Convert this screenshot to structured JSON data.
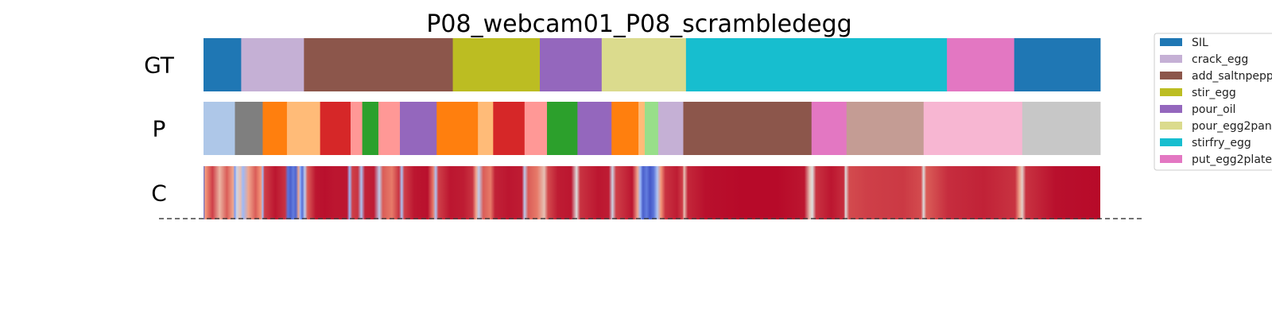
{
  "chart_data": {
    "type": "segmentation-timeline",
    "title": "P08_webcam01_P08_scrambledegg",
    "x_range": [
      0,
      1
    ],
    "legend": {
      "placement": "top-right",
      "entries": [
        {
          "label": "SIL",
          "color": "#1f77b4"
        },
        {
          "label": "crack_egg",
          "color": "#c5b0d5"
        },
        {
          "label": "add_saltnpepper",
          "color": "#8c564b"
        },
        {
          "label": "stir_egg",
          "color": "#bcbd22"
        },
        {
          "label": "pour_oil",
          "color": "#9467bd"
        },
        {
          "label": "pour_egg2pan",
          "color": "#dbdb8d"
        },
        {
          "label": "stirfry_egg",
          "color": "#17becf"
        },
        {
          "label": "put_egg2plate",
          "color": "#e377c2"
        }
      ]
    },
    "rows": [
      {
        "label": "GT",
        "kind": "segments",
        "segments": [
          {
            "start": 0.0,
            "end": 0.042,
            "color": "#1f77b4"
          },
          {
            "start": 0.042,
            "end": 0.112,
            "color": "#c5b0d5"
          },
          {
            "start": 0.112,
            "end": 0.278,
            "color": "#8c564b"
          },
          {
            "start": 0.278,
            "end": 0.375,
            "color": "#bcbd22"
          },
          {
            "start": 0.375,
            "end": 0.444,
            "color": "#9467bd"
          },
          {
            "start": 0.444,
            "end": 0.538,
            "color": "#dbdb8d"
          },
          {
            "start": 0.538,
            "end": 0.829,
            "color": "#17becf"
          },
          {
            "start": 0.829,
            "end": 0.904,
            "color": "#e377c2"
          },
          {
            "start": 0.904,
            "end": 1.0,
            "color": "#1f77b4"
          }
        ]
      },
      {
        "label": "P",
        "kind": "segments",
        "segments": [
          {
            "start": 0.0,
            "end": 0.035,
            "color": "#aec7e8"
          },
          {
            "start": 0.035,
            "end": 0.066,
            "color": "#7f7f7f"
          },
          {
            "start": 0.066,
            "end": 0.093,
            "color": "#ff7f0e"
          },
          {
            "start": 0.093,
            "end": 0.13,
            "color": "#ffbb78"
          },
          {
            "start": 0.13,
            "end": 0.164,
            "color": "#d62728"
          },
          {
            "start": 0.164,
            "end": 0.177,
            "color": "#ff9896"
          },
          {
            "start": 0.177,
            "end": 0.195,
            "color": "#2ca02c"
          },
          {
            "start": 0.195,
            "end": 0.219,
            "color": "#ff9896"
          },
          {
            "start": 0.219,
            "end": 0.26,
            "color": "#9467bd"
          },
          {
            "start": 0.26,
            "end": 0.306,
            "color": "#ff7f0e"
          },
          {
            "start": 0.306,
            "end": 0.323,
            "color": "#ffbb78"
          },
          {
            "start": 0.323,
            "end": 0.358,
            "color": "#d62728"
          },
          {
            "start": 0.358,
            "end": 0.383,
            "color": "#ff9896"
          },
          {
            "start": 0.383,
            "end": 0.417,
            "color": "#2ca02c"
          },
          {
            "start": 0.417,
            "end": 0.455,
            "color": "#9467bd"
          },
          {
            "start": 0.455,
            "end": 0.485,
            "color": "#ff7f0e"
          },
          {
            "start": 0.485,
            "end": 0.492,
            "color": "#ffbb78"
          },
          {
            "start": 0.492,
            "end": 0.507,
            "color": "#98df8a"
          },
          {
            "start": 0.507,
            "end": 0.535,
            "color": "#c5b0d5"
          },
          {
            "start": 0.535,
            "end": 0.678,
            "color": "#8c564b"
          },
          {
            "start": 0.678,
            "end": 0.717,
            "color": "#e377c2"
          },
          {
            "start": 0.717,
            "end": 0.803,
            "color": "#c49c94"
          },
          {
            "start": 0.803,
            "end": 0.913,
            "color": "#f7b6d2"
          },
          {
            "start": 0.913,
            "end": 1.0,
            "color": "#c7c7c7"
          }
        ]
      },
      {
        "label": "C",
        "kind": "confidence",
        "colormap": "coolwarm",
        "points": [
          [
            0.0,
            0.1
          ],
          [
            0.002,
            0.75
          ],
          [
            0.01,
            0.9
          ],
          [
            0.018,
            0.65
          ],
          [
            0.026,
            0.85
          ],
          [
            0.033,
            0.7
          ],
          [
            0.035,
            0.2
          ],
          [
            0.037,
            0.45
          ],
          [
            0.041,
            0.6
          ],
          [
            0.044,
            0.3
          ],
          [
            0.05,
            0.7
          ],
          [
            0.058,
            0.85
          ],
          [
            0.064,
            0.75
          ],
          [
            0.066,
            0.3
          ],
          [
            0.068,
            0.9
          ],
          [
            0.08,
            0.97
          ],
          [
            0.091,
            0.92
          ],
          [
            0.094,
            0.1
          ],
          [
            0.097,
            0.05
          ],
          [
            0.1,
            0.12
          ],
          [
            0.103,
            0.06
          ],
          [
            0.106,
            0.7
          ],
          [
            0.108,
            0.25
          ],
          [
            0.11,
            0.08
          ],
          [
            0.113,
            0.4
          ],
          [
            0.116,
            0.85
          ],
          [
            0.125,
            0.97
          ],
          [
            0.135,
            0.98
          ],
          [
            0.146,
            0.97
          ],
          [
            0.16,
            0.97
          ],
          [
            0.163,
            0.3
          ],
          [
            0.166,
            0.9
          ],
          [
            0.172,
            0.92
          ],
          [
            0.176,
            0.35
          ],
          [
            0.18,
            0.95
          ],
          [
            0.19,
            0.96
          ],
          [
            0.196,
            0.4
          ],
          [
            0.2,
            0.85
          ],
          [
            0.21,
            0.8
          ],
          [
            0.218,
            0.92
          ],
          [
            0.221,
            0.35
          ],
          [
            0.224,
            0.9
          ],
          [
            0.235,
            0.97
          ],
          [
            0.25,
            0.98
          ],
          [
            0.256,
            0.8
          ],
          [
            0.259,
            0.35
          ],
          [
            0.262,
            0.9
          ],
          [
            0.275,
            0.97
          ],
          [
            0.29,
            0.96
          ],
          [
            0.3,
            0.92
          ],
          [
            0.304,
            0.7
          ],
          [
            0.307,
            0.4
          ],
          [
            0.312,
            0.85
          ],
          [
            0.32,
            0.8
          ],
          [
            0.325,
            0.95
          ],
          [
            0.34,
            0.97
          ],
          [
            0.355,
            0.96
          ],
          [
            0.358,
            0.4
          ],
          [
            0.362,
            0.85
          ],
          [
            0.372,
            0.8
          ],
          [
            0.38,
            0.6
          ],
          [
            0.384,
            0.88
          ],
          [
            0.395,
            0.96
          ],
          [
            0.41,
            0.97
          ],
          [
            0.416,
            0.5
          ],
          [
            0.42,
            0.92
          ],
          [
            0.44,
            0.97
          ],
          [
            0.452,
            0.96
          ],
          [
            0.456,
            0.45
          ],
          [
            0.46,
            0.9
          ],
          [
            0.478,
            0.97
          ],
          [
            0.484,
            0.7
          ],
          [
            0.487,
            0.3
          ],
          [
            0.49,
            0.05
          ],
          [
            0.494,
            0.12
          ],
          [
            0.498,
            0.03
          ],
          [
            0.502,
            0.1
          ],
          [
            0.506,
            0.35
          ],
          [
            0.51,
            0.75
          ],
          [
            0.515,
            0.92
          ],
          [
            0.528,
            0.96
          ],
          [
            0.534,
            0.9
          ],
          [
            0.536,
            0.6
          ],
          [
            0.54,
            0.94
          ],
          [
            0.56,
            0.98
          ],
          [
            0.6,
            0.99
          ],
          [
            0.64,
            0.99
          ],
          [
            0.67,
            0.97
          ],
          [
            0.676,
            0.6
          ],
          [
            0.679,
            0.5
          ],
          [
            0.683,
            0.92
          ],
          [
            0.7,
            0.97
          ],
          [
            0.714,
            0.93
          ],
          [
            0.716,
            0.5
          ],
          [
            0.72,
            0.88
          ],
          [
            0.74,
            0.9
          ],
          [
            0.78,
            0.91
          ],
          [
            0.8,
            0.88
          ],
          [
            0.803,
            0.5
          ],
          [
            0.806,
            0.85
          ],
          [
            0.83,
            0.93
          ],
          [
            0.87,
            0.95
          ],
          [
            0.905,
            0.92
          ],
          [
            0.91,
            0.7
          ],
          [
            0.913,
            0.55
          ],
          [
            0.917,
            0.92
          ],
          [
            0.95,
            0.98
          ],
          [
            1.0,
            0.99
          ]
        ]
      }
    ]
  }
}
